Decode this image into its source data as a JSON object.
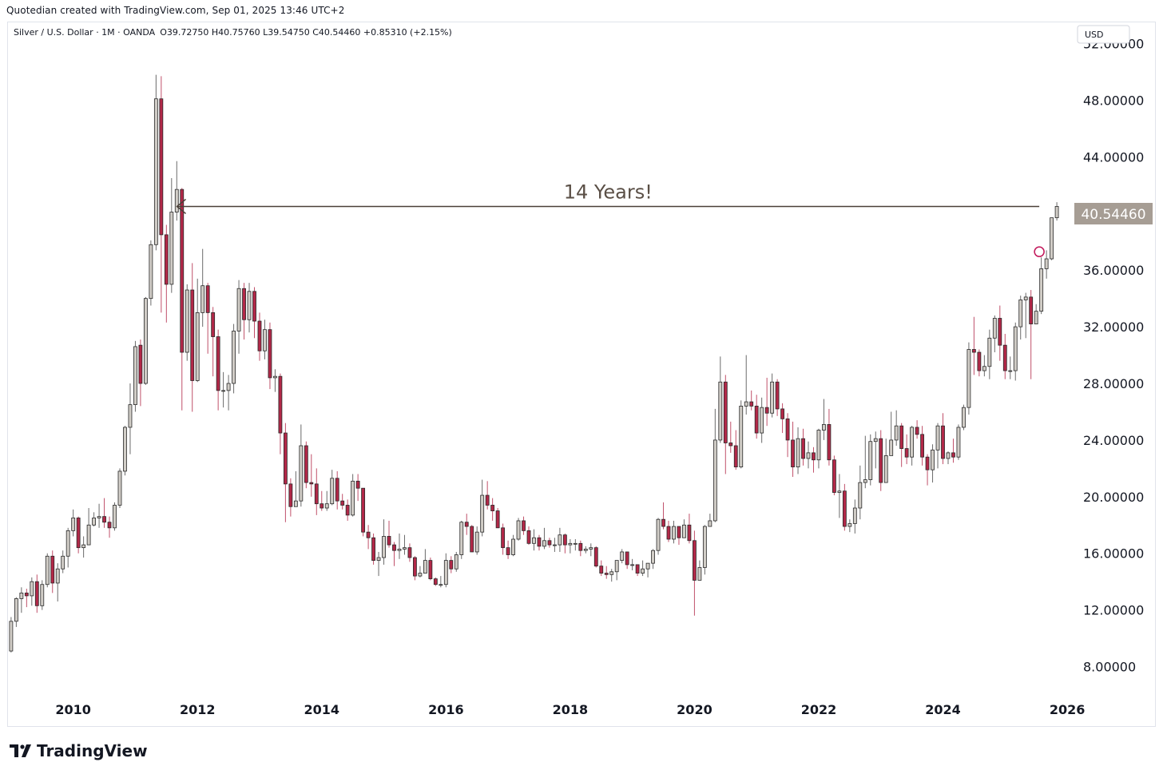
{
  "header": {
    "credit": "Quotedian created with TradingView.com, Sep 01, 2025 13:46 UTC+2"
  },
  "footer": {
    "brand": "TradingView"
  },
  "chart_data": {
    "type": "candlestick",
    "title": "Silver / U.S. Dollar · 1M · OANDA",
    "ohlc_label": "O39.72750 H40.75760 L39.54750 C40.54460 +0.85310 (+2.15%)",
    "currency": "USD",
    "last_price_label": "40.54460",
    "annotation": "14 Years!",
    "ylim": [
      6.0,
      53.5
    ],
    "xlim": [
      2008.95,
      2026.05
    ],
    "y_ticks": [
      "8.00000",
      "12.00000",
      "16.00000",
      "20.00000",
      "24.00000",
      "28.00000",
      "32.00000",
      "36.00000",
      "44.00000",
      "48.00000",
      "52.00000"
    ],
    "y_tick_values": [
      8,
      12,
      16,
      20,
      24,
      28,
      32,
      36,
      44,
      48,
      52
    ],
    "x_ticks": [
      "2010",
      "2012",
      "2014",
      "2016",
      "2018",
      "2020",
      "2022",
      "2024",
      "2026"
    ],
    "x_tick_values": [
      2010,
      2012,
      2014,
      2016,
      2018,
      2020,
      2022,
      2024,
      2026
    ],
    "colors": {
      "up": "#d1cdc7",
      "down": "#b22848",
      "outline": "#2a2a2a",
      "wick_up": "#6a6a6a",
      "wick_down": "#c0506a",
      "arrow": "#4a4038",
      "price_label_bg": "#a69d94",
      "circle": "#c2185b"
    },
    "annotation_arrow": {
      "price": 40.5,
      "from_date": 2011.67,
      "to_date": 2025.55
    },
    "highlight_circle": {
      "date": 2025.55,
      "price": 37.3
    },
    "start_date": 2009.0,
    "step": 0.08333,
    "candles": [
      [
        11.2,
        9.1,
        11.5,
        9.0
      ],
      [
        12.8,
        11.2,
        12.9,
        10.8
      ],
      [
        13.2,
        12.8,
        13.6,
        11.8
      ],
      [
        13.0,
        13.2,
        13.5,
        12.2
      ],
      [
        14.0,
        13.0,
        14.3,
        12.3
      ],
      [
        12.3,
        14.0,
        14.5,
        11.8
      ],
      [
        13.8,
        12.3,
        14.1,
        12.0
      ],
      [
        15.8,
        13.8,
        16.0,
        13.6
      ],
      [
        13.9,
        15.8,
        16.2,
        13.2
      ],
      [
        14.9,
        13.9,
        15.3,
        12.6
      ],
      [
        15.8,
        14.9,
        16.2,
        14.6
      ],
      [
        17.6,
        15.8,
        17.8,
        15.0
      ],
      [
        18.5,
        17.6,
        19.1,
        17.2
      ],
      [
        16.4,
        18.5,
        18.6,
        16.0
      ],
      [
        16.6,
        16.4,
        17.2,
        15.7
      ],
      [
        18.0,
        16.6,
        19.2,
        17.5
      ],
      [
        18.5,
        18.0,
        18.9,
        17.9
      ],
      [
        18.6,
        18.5,
        19.5,
        17.8
      ],
      [
        18.2,
        18.6,
        19.9,
        17.8
      ],
      [
        17.8,
        18.2,
        18.6,
        17.1
      ],
      [
        19.4,
        17.8,
        19.6,
        17.6
      ],
      [
        21.8,
        19.4,
        22.0,
        19.2
      ],
      [
        24.9,
        21.8,
        25.0,
        21.5
      ],
      [
        26.5,
        24.9,
        28.0,
        23.0
      ],
      [
        30.6,
        26.5,
        31.0,
        26.0
      ],
      [
        28.0,
        30.7,
        31.1,
        26.4
      ],
      [
        34.0,
        28.0,
        34.1,
        27.9
      ],
      [
        37.8,
        34.0,
        38.1,
        33.5
      ],
      [
        48.1,
        37.8,
        49.8,
        37.4
      ],
      [
        38.5,
        48.1,
        49.7,
        33.0
      ],
      [
        35.0,
        38.5,
        39.2,
        32.3
      ],
      [
        40.1,
        35.0,
        42.5,
        34.4
      ],
      [
        41.7,
        40.1,
        43.7,
        39.5
      ],
      [
        30.2,
        41.7,
        41.8,
        26.1
      ],
      [
        34.6,
        30.2,
        35.0,
        29.6
      ],
      [
        28.2,
        34.6,
        36.5,
        26.0
      ],
      [
        33.0,
        28.2,
        35.4,
        28.1
      ],
      [
        34.9,
        33.0,
        37.5,
        32.0
      ],
      [
        33.0,
        34.9,
        35.1,
        30.1
      ],
      [
        31.3,
        33.0,
        33.4,
        28.5
      ],
      [
        27.5,
        31.3,
        31.8,
        26.1
      ],
      [
        27.5,
        27.5,
        28.8,
        26.3
      ],
      [
        28.0,
        27.5,
        28.6,
        26.1
      ],
      [
        31.7,
        28.0,
        32.2,
        27.3
      ],
      [
        34.7,
        31.7,
        35.3,
        30.1
      ],
      [
        32.5,
        34.7,
        35.1,
        31.1
      ],
      [
        34.5,
        32.5,
        35.1,
        31.6
      ],
      [
        32.4,
        34.5,
        34.8,
        31.2
      ],
      [
        30.3,
        32.4,
        33.0,
        29.6
      ],
      [
        31.8,
        30.3,
        32.5,
        29.7
      ],
      [
        28.4,
        31.8,
        32.3,
        27.6
      ],
      [
        28.5,
        28.4,
        29.0,
        27.4
      ],
      [
        24.5,
        28.5,
        28.7,
        23.0
      ],
      [
        20.9,
        24.5,
        25.2,
        18.2
      ],
      [
        19.3,
        20.9,
        21.3,
        18.6
      ],
      [
        19.7,
        19.3,
        21.8,
        19.3
      ],
      [
        23.6,
        19.7,
        25.1,
        19.3
      ],
      [
        21.0,
        23.6,
        23.9,
        20.6
      ],
      [
        20.9,
        21.0,
        23.0,
        20.0
      ],
      [
        19.5,
        20.9,
        22.0,
        18.7
      ],
      [
        19.2,
        19.5,
        20.4,
        19.0
      ],
      [
        19.5,
        19.2,
        20.4,
        19.0
      ],
      [
        21.3,
        19.5,
        21.9,
        19.4
      ],
      [
        19.7,
        21.3,
        21.8,
        19.1
      ],
      [
        19.4,
        19.7,
        20.2,
        19.1
      ],
      [
        18.7,
        19.4,
        19.8,
        18.3
      ],
      [
        21.1,
        18.7,
        21.6,
        18.6
      ],
      [
        20.6,
        21.1,
        21.6,
        19.7
      ],
      [
        17.5,
        20.6,
        20.6,
        17.2
      ],
      [
        17.1,
        17.5,
        18.0,
        16.3
      ],
      [
        15.5,
        17.1,
        17.4,
        15.2
      ],
      [
        15.7,
        15.5,
        16.1,
        14.4
      ],
      [
        17.2,
        15.7,
        18.4,
        15.2
      ],
      [
        16.6,
        17.2,
        18.3,
        16.4
      ],
      [
        16.2,
        16.6,
        16.8,
        15.1
      ],
      [
        16.3,
        16.2,
        17.4,
        15.6
      ],
      [
        16.4,
        16.3,
        17.3,
        15.9
      ],
      [
        15.7,
        16.4,
        16.7,
        15.4
      ],
      [
        14.4,
        15.7,
        15.8,
        14.1
      ],
      [
        14.6,
        14.4,
        15.1,
        14.3
      ],
      [
        15.5,
        14.6,
        16.3,
        14.6
      ],
      [
        14.2,
        15.5,
        15.7,
        14.1
      ],
      [
        13.8,
        14.2,
        14.3,
        13.7
      ],
      [
        13.8,
        13.8,
        14.4,
        13.6
      ],
      [
        15.5,
        13.8,
        16.0,
        13.6
      ],
      [
        14.9,
        15.5,
        15.8,
        14.6
      ],
      [
        15.9,
        14.9,
        16.1,
        14.7
      ],
      [
        18.2,
        15.9,
        18.3,
        15.6
      ],
      [
        17.9,
        18.2,
        18.8,
        17.3
      ],
      [
        16.1,
        17.9,
        18.0,
        16.3
      ],
      [
        17.5,
        16.1,
        17.9,
        15.9
      ],
      [
        20.1,
        17.5,
        21.2,
        17.2
      ],
      [
        19.4,
        20.1,
        21.1,
        19.1
      ],
      [
        19.0,
        19.4,
        19.9,
        18.3
      ],
      [
        17.8,
        19.0,
        19.2,
        17.8
      ],
      [
        16.4,
        17.8,
        18.1,
        15.9
      ],
      [
        15.9,
        16.4,
        16.9,
        15.6
      ],
      [
        17.0,
        15.9,
        17.3,
        15.8
      ],
      [
        18.3,
        17.0,
        18.5,
        16.9
      ],
      [
        17.6,
        18.3,
        18.6,
        17.3
      ],
      [
        16.7,
        17.6,
        17.9,
        16.6
      ],
      [
        17.1,
        16.7,
        17.7,
        16.2
      ],
      [
        16.5,
        17.1,
        17.3,
        16.2
      ],
      [
        16.9,
        16.5,
        17.8,
        16.3
      ],
      [
        16.6,
        16.9,
        17.1,
        16.4
      ],
      [
        16.6,
        16.6,
        17.1,
        16.1
      ],
      [
        17.3,
        16.6,
        17.8,
        16.1
      ],
      [
        16.6,
        17.3,
        17.4,
        16.0
      ],
      [
        16.7,
        16.6,
        17.0,
        16.0
      ],
      [
        16.7,
        16.7,
        17.0,
        16.2
      ],
      [
        16.2,
        16.7,
        16.9,
        15.8
      ],
      [
        16.3,
        16.2,
        16.5,
        16.0
      ],
      [
        16.4,
        16.3,
        16.7,
        15.8
      ],
      [
        15.1,
        16.4,
        16.5,
        15.0
      ],
      [
        14.6,
        15.1,
        15.5,
        14.4
      ],
      [
        14.5,
        14.6,
        15.1,
        14.2
      ],
      [
        14.7,
        14.5,
        14.9,
        14.0
      ],
      [
        15.5,
        14.7,
        15.4,
        14.1
      ],
      [
        16.1,
        15.5,
        16.3,
        15.3
      ],
      [
        15.2,
        16.1,
        16.0,
        14.9
      ],
      [
        15.2,
        15.2,
        15.6,
        14.8
      ],
      [
        14.6,
        15.2,
        15.0,
        14.4
      ],
      [
        14.9,
        14.6,
        15.5,
        14.4
      ],
      [
        15.3,
        14.9,
        15.3,
        14.3
      ],
      [
        16.2,
        15.3,
        16.3,
        14.9
      ],
      [
        18.4,
        16.2,
        18.5,
        15.9
      ],
      [
        17.9,
        18.4,
        19.6,
        17.7
      ],
      [
        17.0,
        17.9,
        18.3,
        16.8
      ],
      [
        17.9,
        17.0,
        18.3,
        16.7
      ],
      [
        17.1,
        17.9,
        17.9,
        16.6
      ],
      [
        18.0,
        17.1,
        18.4,
        17.2
      ],
      [
        16.9,
        18.0,
        18.8,
        16.7
      ],
      [
        14.1,
        16.9,
        17.6,
        11.6
      ],
      [
        15.0,
        14.1,
        15.5,
        14.5
      ],
      [
        17.9,
        15.0,
        18.0,
        14.5
      ],
      [
        18.3,
        17.9,
        18.8,
        17.9
      ],
      [
        24.0,
        18.3,
        26.2,
        18.2
      ],
      [
        28.1,
        24.0,
        29.9,
        23.8
      ],
      [
        23.8,
        28.1,
        28.6,
        21.6
      ],
      [
        23.6,
        23.8,
        25.3,
        23.1
      ],
      [
        22.1,
        23.6,
        24.7,
        21.9
      ],
      [
        26.4,
        22.1,
        26.8,
        22.0
      ],
      [
        26.7,
        26.4,
        30.0,
        25.8
      ],
      [
        26.4,
        26.7,
        27.5,
        26.1
      ],
      [
        24.5,
        26.4,
        27.2,
        24.1
      ],
      [
        26.3,
        24.5,
        27.0,
        23.8
      ],
      [
        25.9,
        26.3,
        28.4,
        25.0
      ],
      [
        28.1,
        25.9,
        28.7,
        25.6
      ],
      [
        26.2,
        28.1,
        28.3,
        25.7
      ],
      [
        25.5,
        26.2,
        26.6,
        24.5
      ],
      [
        24.0,
        25.5,
        25.9,
        22.8
      ],
      [
        22.1,
        24.0,
        25.3,
        21.4
      ],
      [
        24.1,
        22.1,
        24.9,
        21.6
      ],
      [
        22.7,
        24.1,
        24.8,
        22.2
      ],
      [
        23.1,
        22.7,
        23.9,
        22.0
      ],
      [
        22.6,
        23.1,
        23.5,
        21.7
      ],
      [
        24.7,
        22.6,
        24.8,
        22.0
      ],
      [
        25.1,
        24.7,
        26.9,
        24.0
      ],
      [
        22.6,
        25.1,
        26.2,
        22.2
      ],
      [
        20.3,
        22.6,
        22.9,
        20.1
      ],
      [
        20.4,
        20.3,
        21.6,
        18.5
      ],
      [
        17.9,
        20.4,
        20.9,
        17.6
      ],
      [
        18.1,
        17.9,
        18.4,
        17.5
      ],
      [
        19.2,
        18.1,
        19.8,
        17.4
      ],
      [
        21.0,
        19.2,
        22.2,
        18.4
      ],
      [
        21.2,
        21.0,
        24.3,
        20.6
      ],
      [
        23.9,
        21.2,
        24.4,
        20.8
      ],
      [
        24.1,
        23.9,
        24.6,
        22.0
      ],
      [
        21.0,
        24.1,
        24.7,
        20.4
      ],
      [
        22.9,
        21.0,
        24.1,
        21.5
      ],
      [
        24.0,
        22.9,
        26.0,
        23.8
      ],
      [
        25.0,
        24.0,
        26.1,
        23.6
      ],
      [
        23.4,
        25.0,
        25.2,
        22.1
      ],
      [
        22.8,
        23.4,
        24.4,
        22.3
      ],
      [
        24.9,
        22.8,
        25.0,
        22.2
      ],
      [
        24.4,
        24.9,
        25.4,
        24.1
      ],
      [
        22.8,
        24.4,
        25.0,
        22.2
      ],
      [
        21.9,
        22.8,
        23.0,
        20.8
      ],
      [
        23.3,
        21.9,
        23.7,
        21.0
      ],
      [
        25.0,
        23.3,
        25.2,
        22.0
      ],
      [
        22.7,
        25.0,
        25.9,
        22.3
      ],
      [
        23.1,
        22.7,
        23.2,
        22.3
      ],
      [
        22.8,
        23.1,
        24.1,
        22.4
      ],
      [
        24.9,
        22.8,
        25.1,
        22.6
      ],
      [
        26.3,
        24.9,
        26.5,
        24.7
      ],
      [
        30.4,
        26.3,
        30.9,
        25.8
      ],
      [
        30.2,
        30.4,
        32.7,
        28.6
      ],
      [
        28.9,
        30.2,
        30.4,
        28.5
      ],
      [
        29.2,
        28.9,
        30.0,
        28.5
      ],
      [
        31.2,
        29.2,
        31.8,
        28.3
      ],
      [
        32.6,
        31.2,
        32.8,
        30.2
      ],
      [
        30.7,
        32.6,
        33.5,
        29.6
      ],
      [
        28.9,
        30.7,
        31.5,
        28.3
      ],
      [
        28.9,
        28.9,
        29.9,
        28.3
      ],
      [
        32.0,
        28.9,
        32.3,
        28.2
      ],
      [
        33.9,
        32.0,
        34.2,
        31.1
      ],
      [
        34.1,
        33.9,
        34.4,
        31.2
      ],
      [
        32.2,
        34.1,
        34.6,
        28.3
      ],
      [
        33.1,
        32.2,
        33.6,
        32.3
      ],
      [
        36.1,
        33.1,
        36.9,
        32.9
      ],
      [
        36.8,
        36.1,
        37.4,
        35.4
      ],
      [
        39.7,
        36.8,
        39.5,
        36.7
      ],
      [
        40.5,
        39.7,
        40.8,
        39.5
      ]
    ]
  }
}
